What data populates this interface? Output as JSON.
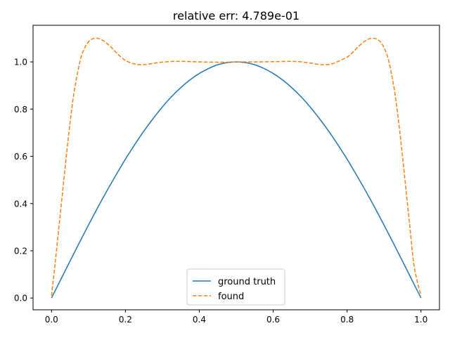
{
  "chart_data": {
    "type": "line",
    "title": "relative err: 4.789e-01",
    "xlabel": "",
    "ylabel": "",
    "xlim": [
      -0.05,
      1.05
    ],
    "ylim": [
      -0.05,
      1.155
    ],
    "xticks": [
      0.0,
      0.2,
      0.4,
      0.6,
      0.8,
      1.0
    ],
    "xtick_labels": [
      "0.0",
      "0.2",
      "0.4",
      "0.6",
      "0.8",
      "1.0"
    ],
    "yticks": [
      0.0,
      0.2,
      0.4,
      0.6,
      0.8,
      1.0
    ],
    "ytick_labels": [
      "0.0",
      "0.2",
      "0.4",
      "0.6",
      "0.8",
      "1.0"
    ],
    "grid": false,
    "legend_position": "lower center",
    "series": [
      {
        "name": "ground truth",
        "color": "#1f77b4",
        "style": "solid",
        "x": [
          0.0,
          0.025,
          0.05,
          0.075,
          0.1,
          0.125,
          0.15,
          0.175,
          0.2,
          0.225,
          0.25,
          0.275,
          0.3,
          0.325,
          0.35,
          0.375,
          0.4,
          0.425,
          0.45,
          0.475,
          0.5,
          0.525,
          0.55,
          0.575,
          0.6,
          0.625,
          0.65,
          0.675,
          0.7,
          0.725,
          0.75,
          0.775,
          0.8,
          0.825,
          0.85,
          0.875,
          0.9,
          0.925,
          0.95,
          0.975,
          1.0
        ],
        "y": [
          0.0,
          0.078,
          0.156,
          0.233,
          0.309,
          0.383,
          0.454,
          0.522,
          0.588,
          0.649,
          0.707,
          0.76,
          0.809,
          0.853,
          0.891,
          0.924,
          0.951,
          0.972,
          0.988,
          0.997,
          1.0,
          0.997,
          0.988,
          0.972,
          0.951,
          0.924,
          0.891,
          0.853,
          0.809,
          0.76,
          0.707,
          0.649,
          0.588,
          0.522,
          0.454,
          0.383,
          0.309,
          0.233,
          0.156,
          0.078,
          0.0
        ]
      },
      {
        "name": "found",
        "color": "#ff7f0e",
        "style": "dashed",
        "x": [
          0.0,
          0.01,
          0.02,
          0.03,
          0.04,
          0.05,
          0.06,
          0.07,
          0.08,
          0.09,
          0.1,
          0.11,
          0.12,
          0.13,
          0.14,
          0.15,
          0.16,
          0.17,
          0.18,
          0.19,
          0.2,
          0.22,
          0.24,
          0.26,
          0.28,
          0.3,
          0.33,
          0.36,
          0.4,
          0.44,
          0.48,
          0.5,
          0.52,
          0.56,
          0.6,
          0.64,
          0.67,
          0.7,
          0.72,
          0.74,
          0.76,
          0.78,
          0.8,
          0.81,
          0.82,
          0.83,
          0.84,
          0.85,
          0.86,
          0.87,
          0.88,
          0.89,
          0.9,
          0.91,
          0.92,
          0.93,
          0.94,
          0.95,
          0.96,
          0.97,
          0.98,
          0.99,
          1.0
        ],
        "y": [
          0.01,
          0.15,
          0.3,
          0.45,
          0.6,
          0.74,
          0.86,
          0.95,
          1.02,
          1.06,
          1.085,
          1.097,
          1.1,
          1.098,
          1.09,
          1.078,
          1.064,
          1.048,
          1.032,
          1.018,
          1.006,
          0.993,
          0.988,
          0.99,
          0.995,
          0.999,
          1.002,
          1.002,
          1.0,
          0.999,
          0.999,
          1.0,
          1.0,
          1.0,
          1.001,
          1.002,
          1.001,
          0.995,
          0.99,
          0.988,
          0.992,
          1.005,
          1.02,
          1.032,
          1.048,
          1.064,
          1.078,
          1.09,
          1.098,
          1.1,
          1.097,
          1.085,
          1.06,
          1.02,
          0.95,
          0.86,
          0.74,
          0.6,
          0.45,
          0.3,
          0.15,
          0.07,
          0.01
        ]
      }
    ]
  }
}
